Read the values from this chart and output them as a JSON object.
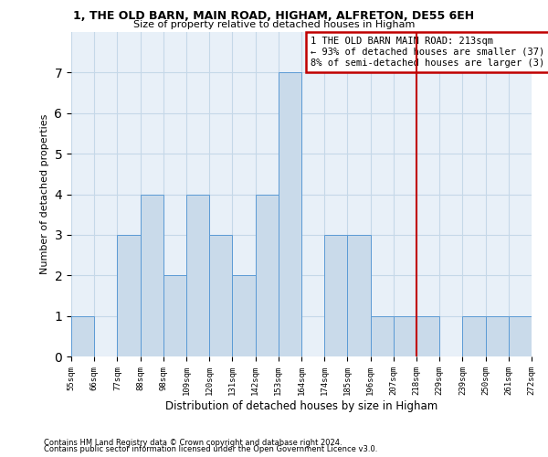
{
  "title": "1, THE OLD BARN, MAIN ROAD, HIGHAM, ALFRETON, DE55 6EH",
  "subtitle": "Size of property relative to detached houses in Higham",
  "xlabel": "Distribution of detached houses by size in Higham",
  "ylabel": "Number of detached properties",
  "bins": [
    "55sqm",
    "66sqm",
    "77sqm",
    "88sqm",
    "98sqm",
    "109sqm",
    "120sqm",
    "131sqm",
    "142sqm",
    "153sqm",
    "164sqm",
    "174sqm",
    "185sqm",
    "196sqm",
    "207sqm",
    "218sqm",
    "229sqm",
    "239sqm",
    "250sqm",
    "261sqm",
    "272sqm"
  ],
  "counts": [
    1,
    0,
    3,
    4,
    2,
    4,
    3,
    2,
    4,
    7,
    0,
    3,
    3,
    1,
    1,
    1,
    0,
    1,
    1,
    1
  ],
  "bar_color": "#c9daea",
  "bar_edge_color": "#5b9bd5",
  "subject_line_color": "#c00000",
  "subject_bin_index": 15,
  "annotation_text": "1 THE OLD BARN MAIN ROAD: 213sqm\n← 93% of detached houses are smaller (37)\n8% of semi-detached houses are larger (3) →",
  "annotation_box_color": "#c00000",
  "ylim": [
    0,
    8
  ],
  "yticks": [
    0,
    1,
    2,
    3,
    4,
    5,
    6,
    7,
    8
  ],
  "footer1": "Contains HM Land Registry data © Crown copyright and database right 2024.",
  "footer2": "Contains public sector information licensed under the Open Government Licence v3.0.",
  "grid_color": "#c5d8e8",
  "background_color": "#e8f0f8"
}
